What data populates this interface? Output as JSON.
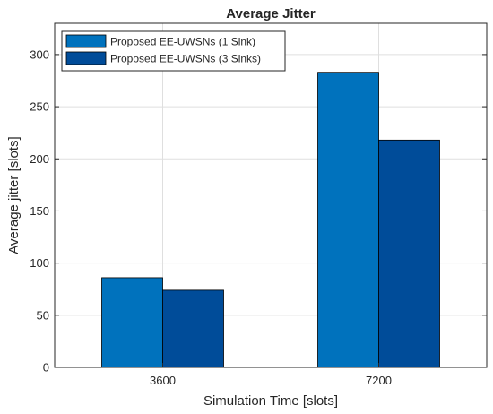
{
  "chart_data": {
    "type": "bar",
    "title": "Average Jitter",
    "xlabel": "Simulation Time [slots]",
    "ylabel": "Average jitter [slots]",
    "categories": [
      "3600",
      "7200"
    ],
    "series": [
      {
        "name": "Proposed EE-UWSNs (1 Sink)",
        "values": [
          86,
          283
        ],
        "color": "#0072BD"
      },
      {
        "name": "Proposed EE-UWSNs (3 Sinks)",
        "values": [
          74,
          218
        ],
        "color": "#004C99"
      }
    ],
    "ylim": [
      0,
      330
    ],
    "yticks": [
      0,
      50,
      100,
      150,
      200,
      250,
      300
    ],
    "grid": true,
    "legend_position": "top-left"
  }
}
